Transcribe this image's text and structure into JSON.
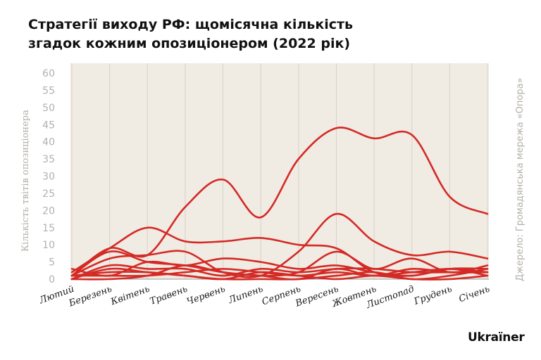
{
  "title_line1": "Стратегії виходу РФ: щомісячна кількість",
  "title_line2": "згадок кожним опозиціонером (2022 рік)",
  "source": "Джерело: Громадянська мережа «Опора»",
  "brand": "Ukraїner",
  "colors": {
    "line": "#d42a26",
    "plot_bg": "#f0ebe3",
    "grid": "#d8d2c8",
    "axis_text": "#b5b0aa"
  },
  "chart_data": {
    "type": "line",
    "ylabel": "Кількість твітів опозиціонера",
    "xlabel": "",
    "ylim": [
      0,
      60
    ],
    "yticks": [
      0,
      5,
      10,
      15,
      20,
      25,
      30,
      35,
      40,
      45,
      50,
      55,
      60
    ],
    "grid": "vertical",
    "categories": [
      "Лютий",
      "Березень",
      "Квітень",
      "Травень",
      "Червень",
      "Липень",
      "Серпень",
      "Вересень",
      "Жовтень",
      "Листопад",
      "Грудень",
      "Січень"
    ],
    "series": [
      {
        "values": [
          1,
          9,
          7,
          21,
          29,
          18,
          35,
          44,
          41,
          42,
          24,
          19
        ]
      },
      {
        "values": [
          2,
          9,
          15,
          11,
          11,
          12,
          10,
          9,
          2,
          1,
          3,
          1
        ]
      },
      {
        "values": [
          1,
          6,
          7,
          8,
          2,
          1,
          8,
          19,
          11,
          7,
          8,
          6
        ]
      },
      {
        "values": [
          1,
          8,
          5,
          4,
          2,
          1,
          2,
          8,
          3,
          6,
          2,
          4
        ]
      },
      {
        "values": [
          3,
          1,
          5,
          4,
          6,
          5,
          3,
          4,
          2,
          1,
          3,
          3
        ]
      },
      {
        "values": [
          0,
          4,
          3,
          3,
          1,
          3,
          2,
          3,
          3,
          2,
          2,
          2
        ]
      },
      {
        "values": [
          1,
          2,
          2,
          1,
          0,
          0,
          0,
          1,
          2,
          0,
          1,
          3
        ]
      },
      {
        "values": [
          1,
          1,
          1,
          2,
          3,
          2,
          1,
          2,
          1,
          2,
          3,
          2
        ]
      },
      {
        "values": [
          0,
          3,
          2,
          1,
          0,
          2,
          1,
          0,
          1,
          0,
          0,
          1
        ]
      },
      {
        "values": [
          0,
          0,
          1,
          4,
          2,
          1,
          0,
          3,
          1,
          3,
          2,
          2
        ]
      }
    ]
  }
}
